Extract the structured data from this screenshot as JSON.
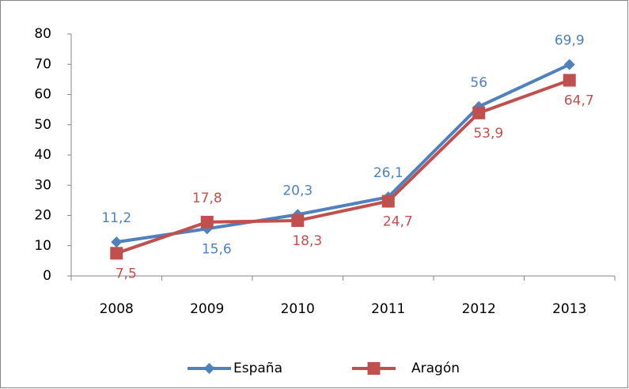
{
  "chart_data": {
    "type": "line",
    "categories": [
      "2008",
      "2009",
      "2010",
      "2011",
      "2012",
      "2013"
    ],
    "series": [
      {
        "name": "España",
        "color": "#4f81bd",
        "marker": "diamond",
        "values": [
          11.2,
          15.6,
          20.3,
          26.1,
          56,
          69.9
        ],
        "value_labels": [
          "11,2",
          "15,6",
          "20,3",
          "26,1",
          "56",
          "69,9"
        ]
      },
      {
        "name": "Aragón",
        "color": "#c0504d",
        "marker": "square",
        "values": [
          7.5,
          17.8,
          18.3,
          24.7,
          53.9,
          64.7
        ],
        "value_labels": [
          "7,5",
          "17,8",
          "18,3",
          "24,7",
          "53,9",
          "64,7"
        ]
      }
    ],
    "ylim": [
      0,
      80
    ],
    "yticks": [
      0,
      10,
      20,
      30,
      40,
      50,
      60,
      70,
      80
    ],
    "grid": false,
    "legend": "bottom"
  }
}
